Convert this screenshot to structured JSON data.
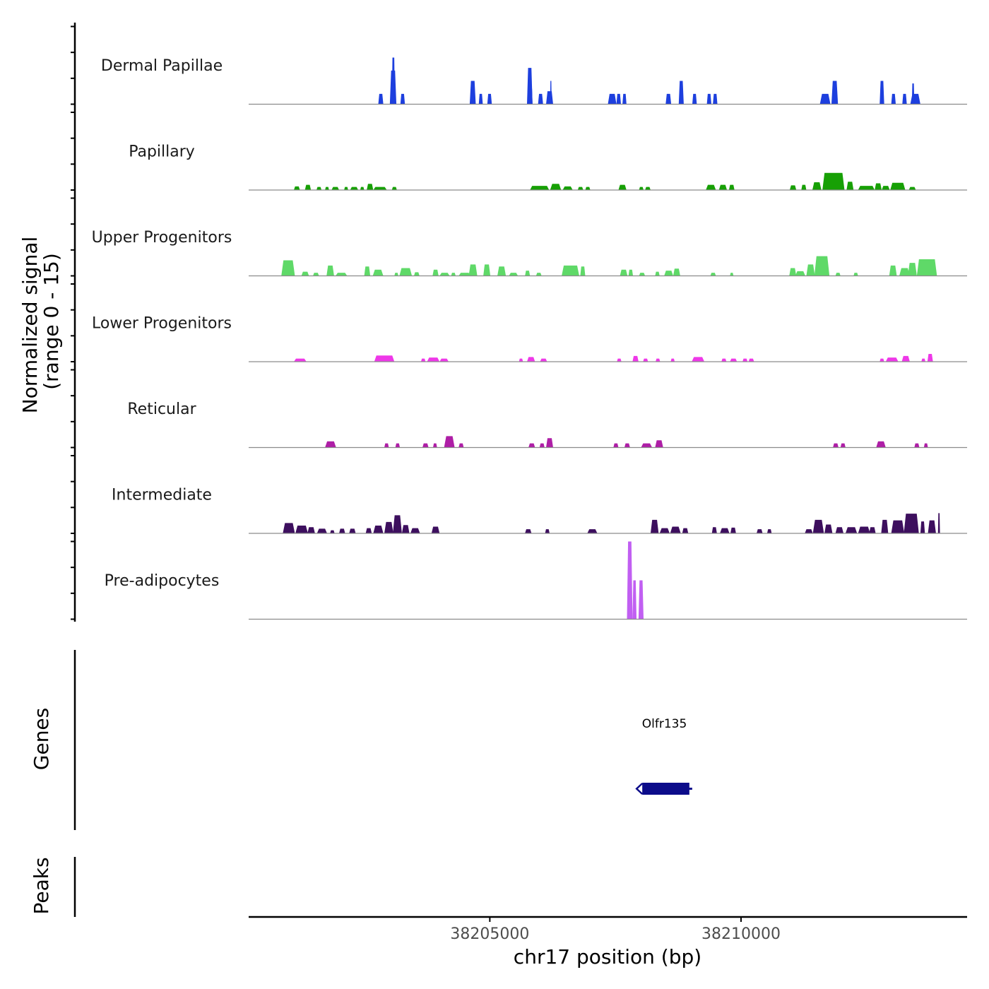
{
  "chart_data": {
    "type": "area",
    "subtype": "coverage-track",
    "title": "",
    "xlabel": "chr17 position (bp)",
    "ylabel": "Normalized signal",
    "ylabel_range": "(range 0 - 15)",
    "xlim": [
      38200200,
      38214500
    ],
    "ylim": [
      0,
      15
    ],
    "xticks": [
      {
        "value": 38205000,
        "label": "38205000"
      },
      {
        "value": 38210000,
        "label": "38210000"
      }
    ],
    "tracks": [
      {
        "name": "Dermal Papillae",
        "color": "#1d3fde",
        "peaks": [
          [
            38202780,
            38202880,
            2
          ],
          [
            38203010,
            38203140,
            6.5
          ],
          [
            38203050,
            38203110,
            9
          ],
          [
            38203220,
            38203310,
            2
          ],
          [
            38204600,
            38204720,
            4.5
          ],
          [
            38204780,
            38204860,
            2
          ],
          [
            38204950,
            38205040,
            2
          ],
          [
            38205740,
            38205850,
            7
          ],
          [
            38205800,
            38205850,
            3
          ],
          [
            38205960,
            38206060,
            2
          ],
          [
            38206120,
            38206260,
            2.5
          ],
          [
            38206200,
            38206230,
            4.5
          ],
          [
            38207350,
            38207520,
            2
          ],
          [
            38207520,
            38207610,
            2
          ],
          [
            38207640,
            38207720,
            2
          ],
          [
            38208500,
            38208610,
            2
          ],
          [
            38208760,
            38208860,
            4.5
          ],
          [
            38209030,
            38209120,
            2
          ],
          [
            38209320,
            38209410,
            2
          ],
          [
            38209440,
            38209530,
            2
          ],
          [
            38211570,
            38211780,
            2
          ],
          [
            38211800,
            38211930,
            4.5
          ],
          [
            38212760,
            38212850,
            4.5
          ],
          [
            38212990,
            38213080,
            2
          ],
          [
            38213210,
            38213300,
            2
          ],
          [
            38213370,
            38213570,
            2
          ],
          [
            38213400,
            38213450,
            4
          ]
        ]
      },
      {
        "name": "Papillary",
        "color": "#17a005",
        "peaks": [
          [
            38201100,
            38201220,
            0.7
          ],
          [
            38201320,
            38201440,
            1
          ],
          [
            38201550,
            38201650,
            0.6
          ],
          [
            38201720,
            38201800,
            0.6
          ],
          [
            38201850,
            38202000,
            0.6
          ],
          [
            38202100,
            38202180,
            0.6
          ],
          [
            38202220,
            38202380,
            0.6
          ],
          [
            38202420,
            38202500,
            0.6
          ],
          [
            38202550,
            38202680,
            1.2
          ],
          [
            38202680,
            38202950,
            0.6
          ],
          [
            38203050,
            38203150,
            0.6
          ],
          [
            38205800,
            38206180,
            0.8
          ],
          [
            38206200,
            38206420,
            1.2
          ],
          [
            38206450,
            38206650,
            0.7
          ],
          [
            38206750,
            38206860,
            0.6
          ],
          [
            38206900,
            38207000,
            0.6
          ],
          [
            38207560,
            38207720,
            1
          ],
          [
            38207970,
            38208060,
            0.6
          ],
          [
            38208090,
            38208200,
            0.6
          ],
          [
            38209300,
            38209500,
            1
          ],
          [
            38209560,
            38209720,
            1
          ],
          [
            38209760,
            38209870,
            1
          ],
          [
            38210970,
            38211100,
            0.9
          ],
          [
            38211200,
            38211300,
            1
          ],
          [
            38211420,
            38211600,
            1.5
          ],
          [
            38211620,
            38212060,
            3.3
          ],
          [
            38212100,
            38212240,
            1.6
          ],
          [
            38212330,
            38212660,
            0.8
          ],
          [
            38212660,
            38212800,
            1.3
          ],
          [
            38212800,
            38212960,
            0.8
          ],
          [
            38212970,
            38213270,
            1.4
          ],
          [
            38213340,
            38213480,
            0.6
          ]
        ]
      },
      {
        "name": "Upper Progenitors",
        "color": "#5fd968",
        "peaks": [
          [
            38200850,
            38201120,
            3
          ],
          [
            38201250,
            38201400,
            0.8
          ],
          [
            38201480,
            38201600,
            0.6
          ],
          [
            38201750,
            38201900,
            2
          ],
          [
            38201930,
            38202160,
            0.6
          ],
          [
            38202500,
            38202620,
            1.8
          ],
          [
            38202670,
            38202880,
            1.2
          ],
          [
            38203100,
            38203180,
            0.6
          ],
          [
            38203200,
            38203450,
            1.5
          ],
          [
            38203490,
            38203600,
            0.7
          ],
          [
            38203860,
            38203980,
            1.2
          ],
          [
            38204000,
            38204200,
            0.6
          ],
          [
            38204230,
            38204320,
            0.6
          ],
          [
            38204380,
            38204620,
            0.6
          ],
          [
            38204580,
            38204750,
            2.2
          ],
          [
            38204870,
            38205010,
            2.2
          ],
          [
            38205150,
            38205320,
            1.8
          ],
          [
            38205380,
            38205560,
            0.6
          ],
          [
            38205700,
            38205800,
            1
          ],
          [
            38205920,
            38206030,
            0.6
          ],
          [
            38206430,
            38206780,
            2
          ],
          [
            38206800,
            38206900,
            1.8
          ],
          [
            38207590,
            38207740,
            1.2
          ],
          [
            38207760,
            38207850,
            1.2
          ],
          [
            38207970,
            38208090,
            0.6
          ],
          [
            38208290,
            38208380,
            0.8
          ],
          [
            38208470,
            38208650,
            1
          ],
          [
            38208650,
            38208790,
            1.4
          ],
          [
            38209390,
            38209500,
            0.6
          ],
          [
            38209780,
            38209850,
            0.6
          ],
          [
            38210960,
            38211100,
            1.5
          ],
          [
            38211080,
            38211280,
            0.9
          ],
          [
            38211300,
            38211470,
            2.2
          ],
          [
            38211460,
            38211760,
            3.8
          ],
          [
            38211880,
            38211980,
            0.6
          ],
          [
            38212240,
            38212330,
            0.6
          ],
          [
            38212950,
            38213100,
            2
          ],
          [
            38213150,
            38213360,
            1.5
          ],
          [
            38213320,
            38213500,
            2.5
          ],
          [
            38213500,
            38213900,
            3.2
          ]
        ]
      },
      {
        "name": "Lower Progenitors",
        "color": "#ee38e8",
        "peaks": [
          [
            38201100,
            38201350,
            0.6
          ],
          [
            38202700,
            38203100,
            1.2
          ],
          [
            38203630,
            38203720,
            0.6
          ],
          [
            38203750,
            38204000,
            0.8
          ],
          [
            38204000,
            38204180,
            0.6
          ],
          [
            38205580,
            38205660,
            0.6
          ],
          [
            38205740,
            38205900,
            0.9
          ],
          [
            38206000,
            38206140,
            0.6
          ],
          [
            38207530,
            38207620,
            0.6
          ],
          [
            38207840,
            38207960,
            1.1
          ],
          [
            38208050,
            38208150,
            0.6
          ],
          [
            38208300,
            38208390,
            0.6
          ],
          [
            38208600,
            38208680,
            0.6
          ],
          [
            38209020,
            38209270,
            0.9
          ],
          [
            38209610,
            38209710,
            0.6
          ],
          [
            38209780,
            38209920,
            0.6
          ],
          [
            38210030,
            38210130,
            0.6
          ],
          [
            38210150,
            38210260,
            0.6
          ],
          [
            38212760,
            38212850,
            0.6
          ],
          [
            38212880,
            38213130,
            0.8
          ],
          [
            38213200,
            38213360,
            1.1
          ],
          [
            38213590,
            38213670,
            0.6
          ],
          [
            38213710,
            38213820,
            1.5
          ]
        ]
      },
      {
        "name": "Reticular",
        "color": "#ae1ea6",
        "peaks": [
          [
            38201720,
            38201940,
            1.2
          ],
          [
            38202900,
            38202990,
            0.8
          ],
          [
            38203120,
            38203210,
            0.8
          ],
          [
            38203660,
            38203780,
            0.8
          ],
          [
            38203870,
            38203950,
            0.8
          ],
          [
            38204090,
            38204300,
            2.2
          ],
          [
            38204380,
            38204480,
            0.8
          ],
          [
            38205770,
            38205900,
            0.8
          ],
          [
            38205990,
            38206090,
            0.8
          ],
          [
            38206120,
            38206260,
            1.8
          ],
          [
            38207460,
            38207560,
            0.8
          ],
          [
            38207680,
            38207790,
            0.8
          ],
          [
            38208010,
            38208230,
            0.8
          ],
          [
            38208290,
            38208450,
            1.4
          ],
          [
            38211830,
            38211940,
            0.8
          ],
          [
            38211980,
            38212080,
            0.8
          ],
          [
            38212690,
            38212880,
            1.2
          ],
          [
            38213450,
            38213550,
            0.8
          ],
          [
            38213640,
            38213720,
            0.8
          ]
        ]
      },
      {
        "name": "Intermediate",
        "color": "#3d0f5e",
        "peaks": [
          [
            38200880,
            38201120,
            2
          ],
          [
            38201130,
            38201380,
            1.5
          ],
          [
            38201370,
            38201520,
            1.2
          ],
          [
            38201560,
            38201760,
            0.9
          ],
          [
            38201820,
            38201910,
            0.6
          ],
          [
            38202000,
            38202120,
            0.9
          ],
          [
            38202200,
            38202330,
            0.9
          ],
          [
            38202530,
            38202650,
            1
          ],
          [
            38202680,
            38202880,
            1.5
          ],
          [
            38202900,
            38203080,
            2.2
          ],
          [
            38203070,
            38203250,
            3.5
          ],
          [
            38203250,
            38203400,
            1.6
          ],
          [
            38203420,
            38203610,
            1
          ],
          [
            38203840,
            38204000,
            1.3
          ],
          [
            38205700,
            38205830,
            0.8
          ],
          [
            38206100,
            38206190,
            0.8
          ],
          [
            38206940,
            38207140,
            0.8
          ],
          [
            38208200,
            38208360,
            2.6
          ],
          [
            38208380,
            38208580,
            1
          ],
          [
            38208590,
            38208800,
            1.3
          ],
          [
            38208830,
            38208950,
            1
          ],
          [
            38209420,
            38209520,
            1.2
          ],
          [
            38209580,
            38209770,
            1
          ],
          [
            38209790,
            38209900,
            1.1
          ],
          [
            38210310,
            38210430,
            0.8
          ],
          [
            38210520,
            38210610,
            0.8
          ],
          [
            38211270,
            38211430,
            0.8
          ],
          [
            38211430,
            38211650,
            2.6
          ],
          [
            38211660,
            38211820,
            1.7
          ],
          [
            38211880,
            38212040,
            1.2
          ],
          [
            38212080,
            38212310,
            1.2
          ],
          [
            38212330,
            38212570,
            1.3
          ],
          [
            38212550,
            38212680,
            1.2
          ],
          [
            38212790,
            38212930,
            2.6
          ],
          [
            38212990,
            38213250,
            2.5
          ],
          [
            38213240,
            38213540,
            3.8
          ],
          [
            38213570,
            38213660,
            2.3
          ],
          [
            38213720,
            38213880,
            2.5
          ],
          [
            38213920,
            38213960,
            3.9
          ]
        ]
      },
      {
        "name": "Pre-adipocytes",
        "color": "#c15ff2",
        "peaks": [
          [
            38207730,
            38207840,
            15
          ],
          [
            38207840,
            38207920,
            7.5
          ],
          [
            38207960,
            38208060,
            7.5
          ]
        ]
      }
    ],
    "genes": {
      "label": "Genes",
      "items": [
        {
          "name": "Olfr135",
          "start": 38207950,
          "end": 38209000,
          "strand": "-",
          "color": "#0c0c8a"
        }
      ]
    },
    "peaks_panel": {
      "label": "Peaks",
      "items": []
    }
  }
}
